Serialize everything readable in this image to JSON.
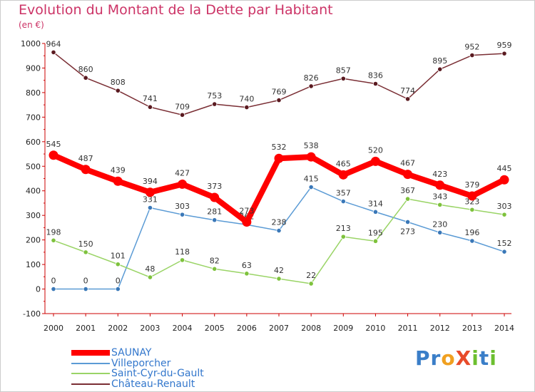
{
  "header": {
    "title": "Evolution du Montant de la Dette par Habitant",
    "unit": "(en €)"
  },
  "logo": {
    "text": "ProXiti",
    "letters": [
      {
        "ch": "P",
        "color": "#3a7ec8"
      },
      {
        "ch": "r",
        "color": "#3a7ec8"
      },
      {
        "ch": "o",
        "color": "#f0a020"
      },
      {
        "ch": "X",
        "color": "#e84b2a"
      },
      {
        "ch": "i",
        "color": "#6cbf2f"
      },
      {
        "ch": "t",
        "color": "#3a7ec8"
      },
      {
        "ch": "i",
        "color": "#6cbf2f"
      }
    ]
  },
  "chart_data": {
    "type": "line",
    "x": [
      2000,
      2001,
      2002,
      2003,
      2004,
      2005,
      2006,
      2007,
      2008,
      2009,
      2010,
      2011,
      2012,
      2013,
      2014
    ],
    "ylim": [
      -100,
      1000
    ],
    "yticks": [
      -100,
      0,
      100,
      200,
      300,
      400,
      500,
      600,
      700,
      800,
      900,
      1000
    ],
    "grid": false,
    "legend": "bottom-left",
    "series": [
      {
        "name": "Château-Renault",
        "color": "#7a2e34",
        "values": [
          964,
          860,
          808,
          741,
          709,
          753,
          740,
          769,
          826,
          857,
          836,
          774,
          895,
          952,
          959
        ]
      },
      {
        "name": "Villeporcher",
        "color": "#5b9bd5",
        "values": [
          0,
          0,
          0,
          331,
          303,
          281,
          262,
          238,
          415,
          357,
          314,
          273,
          230,
          196,
          152
        ]
      },
      {
        "name": "Saint-Cyr-du-Gault",
        "color": "#9ad466",
        "values": [
          198,
          150,
          101,
          48,
          118,
          82,
          63,
          42,
          22,
          213,
          195,
          367,
          343,
          323,
          303
        ]
      },
      {
        "name": "SAUNAY",
        "color": "#ff0000",
        "values": [
          545,
          487,
          439,
          394,
          427,
          373,
          273,
          532,
          538,
          465,
          520,
          467,
          423,
          379,
          445
        ]
      }
    ]
  }
}
